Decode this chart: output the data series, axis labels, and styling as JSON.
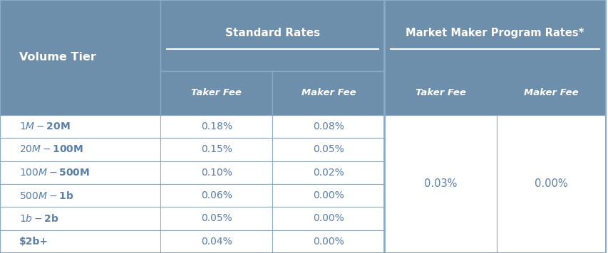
{
  "header_bg_color": "#6e8fab",
  "header_text_color": "#ffffff",
  "cell_bg_color": "#ffffff",
  "cell_text_color": "#5a7fa8",
  "border_color": "#8aaac8",
  "volume_tiers": [
    "$1M - $20M",
    "$20M - $100M",
    "$100M - $500M",
    "$500M - $1b",
    "$1b - $2b",
    "$2b+"
  ],
  "standard_taker": [
    "0.18%",
    "0.15%",
    "0.10%",
    "0.06%",
    "0.05%",
    "0.04%"
  ],
  "standard_maker": [
    "0.08%",
    "0.05%",
    "0.02%",
    "0.00%",
    "0.00%",
    "0.00%"
  ],
  "mm_taker": "0.03%",
  "mm_maker": "0.00%",
  "col_header_1": "Volume Tier",
  "col_header_2": "Standard Rates",
  "col_header_3": "Market Maker Program Rates*",
  "sub_header_taker": "Taker Fee",
  "sub_header_maker": "Maker Fee",
  "figsize": [
    8.54,
    3.56
  ],
  "dpi": 100
}
